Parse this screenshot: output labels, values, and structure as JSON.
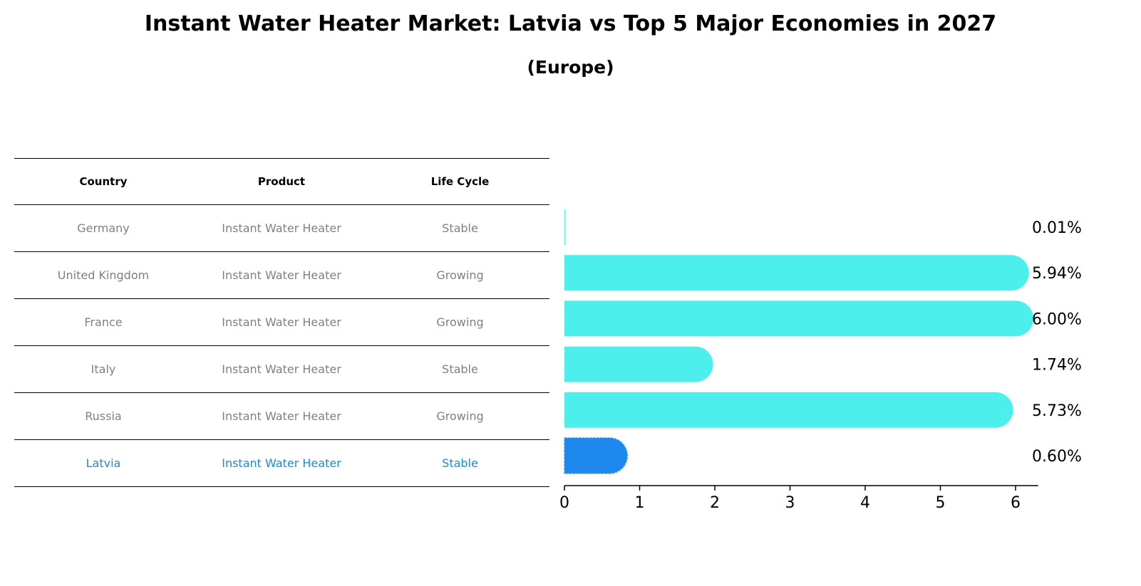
{
  "title": "Instant Water Heater Market: Latvia vs Top 5 Major Economies in 2027",
  "subtitle": "(Europe)",
  "table": {
    "headers": [
      "Country",
      "Product",
      "Life Cycle"
    ],
    "rows": [
      [
        "Germany",
        "Instant Water Heater",
        "Stable"
      ],
      [
        "United Kingdom",
        "Instant Water Heater",
        "Growing"
      ],
      [
        "France",
        "Instant Water Heater",
        "Growing"
      ],
      [
        "Italy",
        "Instant Water Heater",
        "Stable"
      ],
      [
        "Russia",
        "Instant Water Heater",
        "Growing"
      ],
      [
        "Latvia",
        "Instant Water Heater",
        "Stable"
      ]
    ]
  },
  "chart_data": {
    "type": "bar",
    "orientation": "horizontal",
    "categories": [
      "Germany",
      "United Kingdom",
      "France",
      "Italy",
      "Russia",
      "Latvia"
    ],
    "values": [
      0.01,
      5.94,
      6.0,
      1.74,
      5.73,
      0.6
    ],
    "value_labels": [
      "0.01%",
      "5.94%",
      "6.00%",
      "1.74%",
      "5.73%",
      "0.60%"
    ],
    "xlim": [
      0,
      6.3
    ],
    "xticks": [
      "0",
      "1",
      "2",
      "3",
      "4",
      "5",
      "6"
    ],
    "grid": false,
    "colors": {
      "default": "#4cefec",
      "highlight": "#1e88ee",
      "highlight_text": "#1a8ad4",
      "muted_text": "#808080"
    },
    "highlight_category": "Latvia"
  }
}
